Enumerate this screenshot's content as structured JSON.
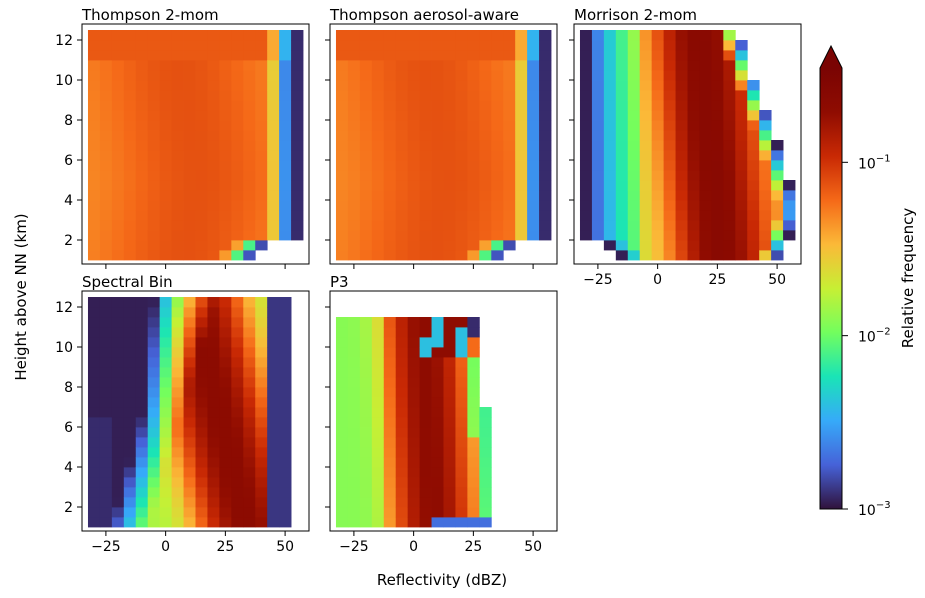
{
  "figure": {
    "ylabel": "Height above NN (km)",
    "xlabel": "Reflectivity (dBZ)",
    "colorbar_label": "Relative frequency",
    "colorbar_ticks": [
      {
        "base": "10",
        "exp": "−1",
        "value": 0.1
      },
      {
        "base": "10",
        "exp": "−2",
        "value": 0.01
      },
      {
        "base": "10",
        "exp": "−3",
        "value": 0.001
      }
    ],
    "colorbar_range": [
      0.001,
      0.35
    ],
    "colorbar_scale": "log",
    "colorbar_extend": "max",
    "colormap": "turbo"
  },
  "chart_data": [
    {
      "type": "heatmap",
      "title": "Thompson 2-mom",
      "model": "thompson",
      "xlim": [
        -35,
        60
      ],
      "ylim": [
        0.8,
        12.8
      ],
      "xticks": [
        "−25",
        "0",
        "25",
        "50"
      ],
      "xtick_values": [
        -25,
        0,
        25,
        50
      ],
      "yticks": [
        "2",
        "4",
        "6",
        "8",
        "10",
        "12"
      ],
      "ytick_values": [
        2,
        4,
        6,
        8,
        10,
        12
      ],
      "show_xticklabels": false,
      "show_yticklabels": true,
      "cell_dbz": 5,
      "cell_km": 0.5
    },
    {
      "type": "heatmap",
      "title": "Thompson aerosol-aware",
      "model": "thompson",
      "xlim": [
        -35,
        60
      ],
      "ylim": [
        0.8,
        12.8
      ],
      "xticks": [
        "−25",
        "0",
        "25",
        "50"
      ],
      "xtick_values": [
        -25,
        0,
        25,
        50
      ],
      "yticks": [
        "2",
        "4",
        "6",
        "8",
        "10",
        "12"
      ],
      "ytick_values": [
        2,
        4,
        6,
        8,
        10,
        12
      ],
      "show_xticklabels": false,
      "show_yticklabels": false,
      "cell_dbz": 5,
      "cell_km": 0.5
    },
    {
      "type": "heatmap",
      "title": "Morrison 2-mom",
      "model": "morrison",
      "xlim": [
        -35,
        60
      ],
      "ylim": [
        0.8,
        12.8
      ],
      "xticks": [
        "−25",
        "0",
        "25",
        "50"
      ],
      "xtick_values": [
        -25,
        0,
        25,
        50
      ],
      "yticks": [
        "2",
        "4",
        "6",
        "8",
        "10",
        "12"
      ],
      "ytick_values": [
        2,
        4,
        6,
        8,
        10,
        12
      ],
      "show_xticklabels": true,
      "show_yticklabels": false,
      "cell_dbz": 5,
      "cell_km": 0.5
    },
    {
      "type": "heatmap",
      "title": "Spectral Bin",
      "model": "sbm",
      "xlim": [
        -35,
        60
      ],
      "ylim": [
        0.8,
        12.8
      ],
      "xticks": [
        "−25",
        "0",
        "25",
        "50"
      ],
      "xtick_values": [
        -25,
        0,
        25,
        50
      ],
      "yticks": [
        "2",
        "4",
        "6",
        "8",
        "10",
        "12"
      ],
      "ytick_values": [
        2,
        4,
        6,
        8,
        10,
        12
      ],
      "show_xticklabels": true,
      "show_yticklabels": true,
      "cell_dbz": 5,
      "cell_km": 0.5
    },
    {
      "type": "heatmap",
      "title": "P3",
      "model": "p3",
      "xlim": [
        -35,
        60
      ],
      "ylim": [
        0.8,
        12.8
      ],
      "xticks": [
        "−25",
        "0",
        "25",
        "50"
      ],
      "xtick_values": [
        -25,
        0,
        25,
        50
      ],
      "yticks": [
        "2",
        "4",
        "6",
        "8",
        "10",
        "12"
      ],
      "ytick_values": [
        2,
        4,
        6,
        8,
        10,
        12
      ],
      "show_xticklabels": true,
      "show_yticklabels": false,
      "cell_dbz": 5,
      "cell_km": 0.5
    }
  ]
}
